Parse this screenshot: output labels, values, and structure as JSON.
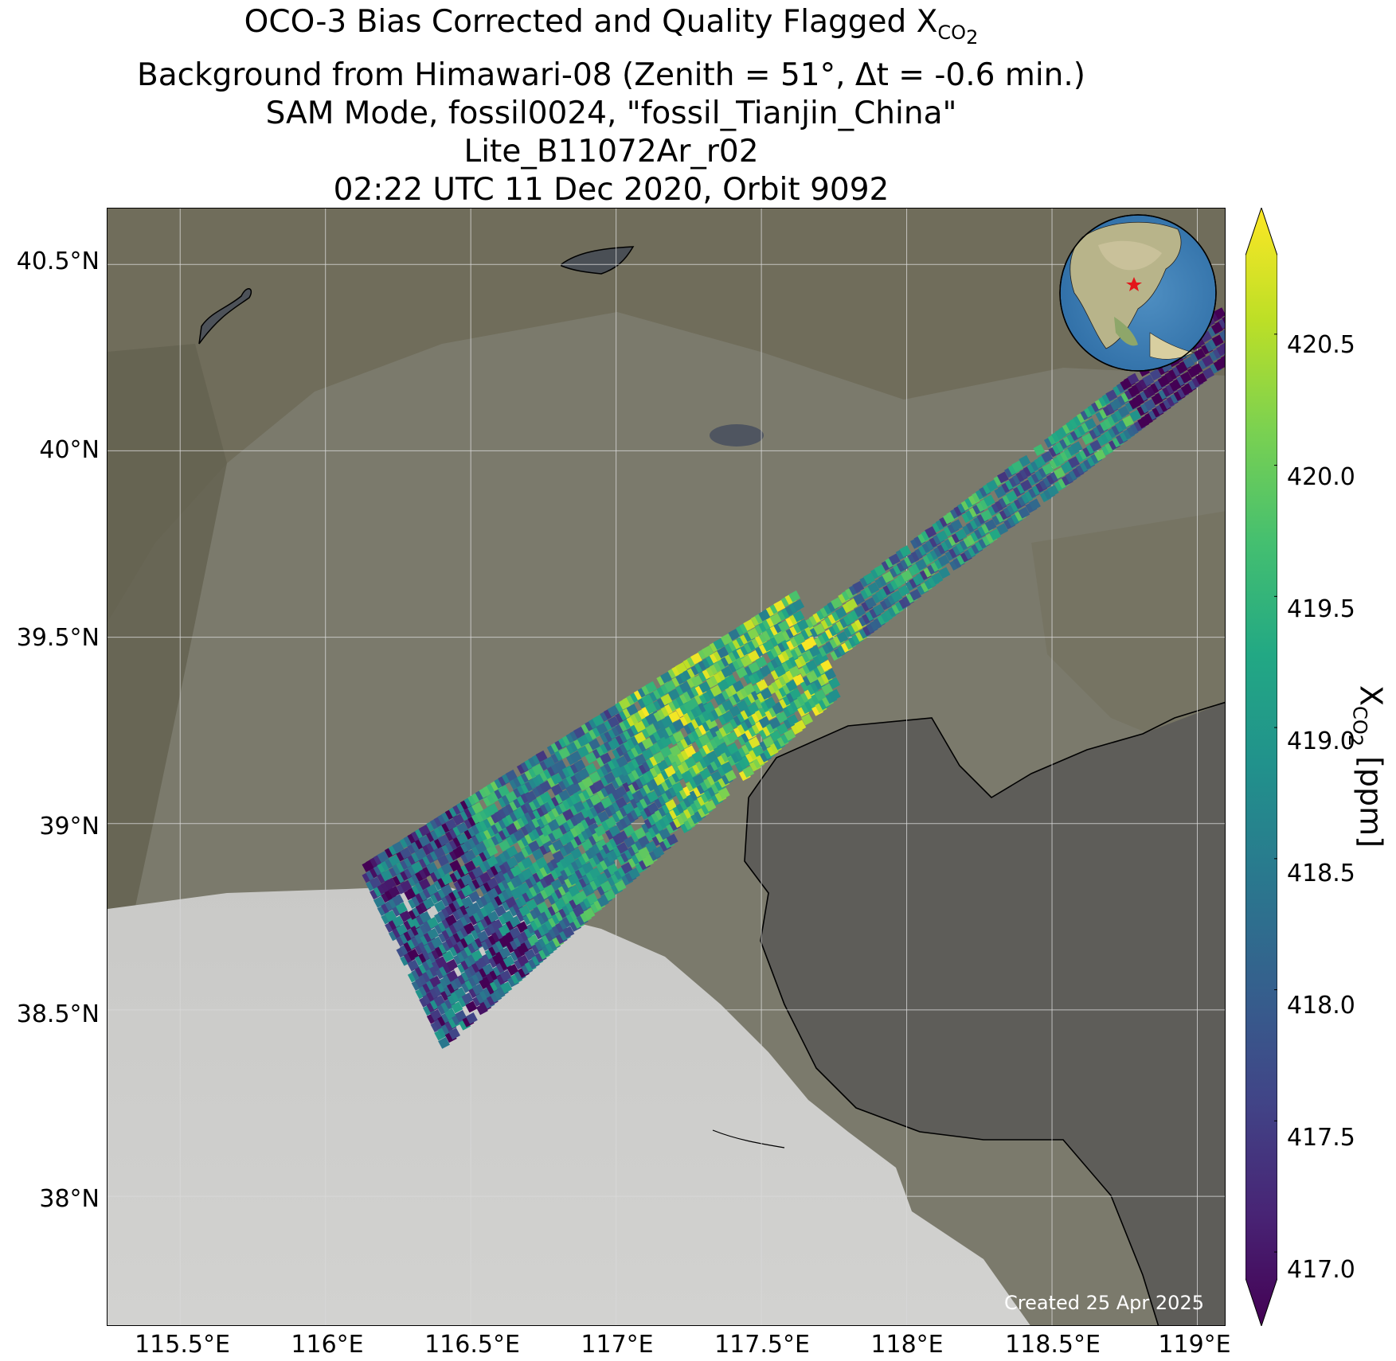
{
  "title": {
    "line1_prefix": "OCO-3 Bias Corrected and Quality Flagged X",
    "line1_sub": "CO",
    "line1_subsub": "2",
    "line2": "Background from Himawari-08 (Zenith = 51°, Δt = -0.6 min.)",
    "line3": "SAM Mode, fossil0024, \"fossil_Tianjin_China\"",
    "line4": "Lite_B11072Ar_r02",
    "line5": "02:22 UTC 11 Dec 2020, Orbit 9092"
  },
  "map": {
    "lat_ticks": [
      "40.5°N",
      "40°N",
      "39.5°N",
      "39°N",
      "38.5°N",
      "38°N"
    ],
    "lon_ticks": [
      "115.5°E",
      "116°E",
      "116.5°E",
      "117°E",
      "117.5°E",
      "118°E",
      "118.5°E",
      "119°E"
    ],
    "lat_tick_values": [
      40.5,
      40.0,
      39.5,
      39.0,
      38.5,
      38.0
    ],
    "lon_tick_values": [
      115.5,
      116.0,
      116.5,
      117.0,
      117.5,
      118.0,
      118.5,
      119.0
    ],
    "extent": {
      "lon": [
        115.25,
        119.1
      ],
      "lat": [
        37.65,
        40.65
      ]
    },
    "created_note": "Created 25 Apr 2025",
    "target_marker": "red-star",
    "background": "Himawari-08 true color imagery"
  },
  "colorbar": {
    "label_prefix": "X",
    "label_sub": "CO",
    "label_subsub": "2",
    "label_suffix": " [ppm]",
    "ticks": [
      "420.5",
      "420.0",
      "419.5",
      "419.0",
      "418.5",
      "418.0",
      "417.5",
      "417.0"
    ],
    "tick_values": [
      420.5,
      420.0,
      419.5,
      419.0,
      418.5,
      418.0,
      417.5,
      417.0
    ],
    "range": [
      416.9,
      420.8
    ],
    "colormap": "viridis",
    "extend": "both"
  }
}
